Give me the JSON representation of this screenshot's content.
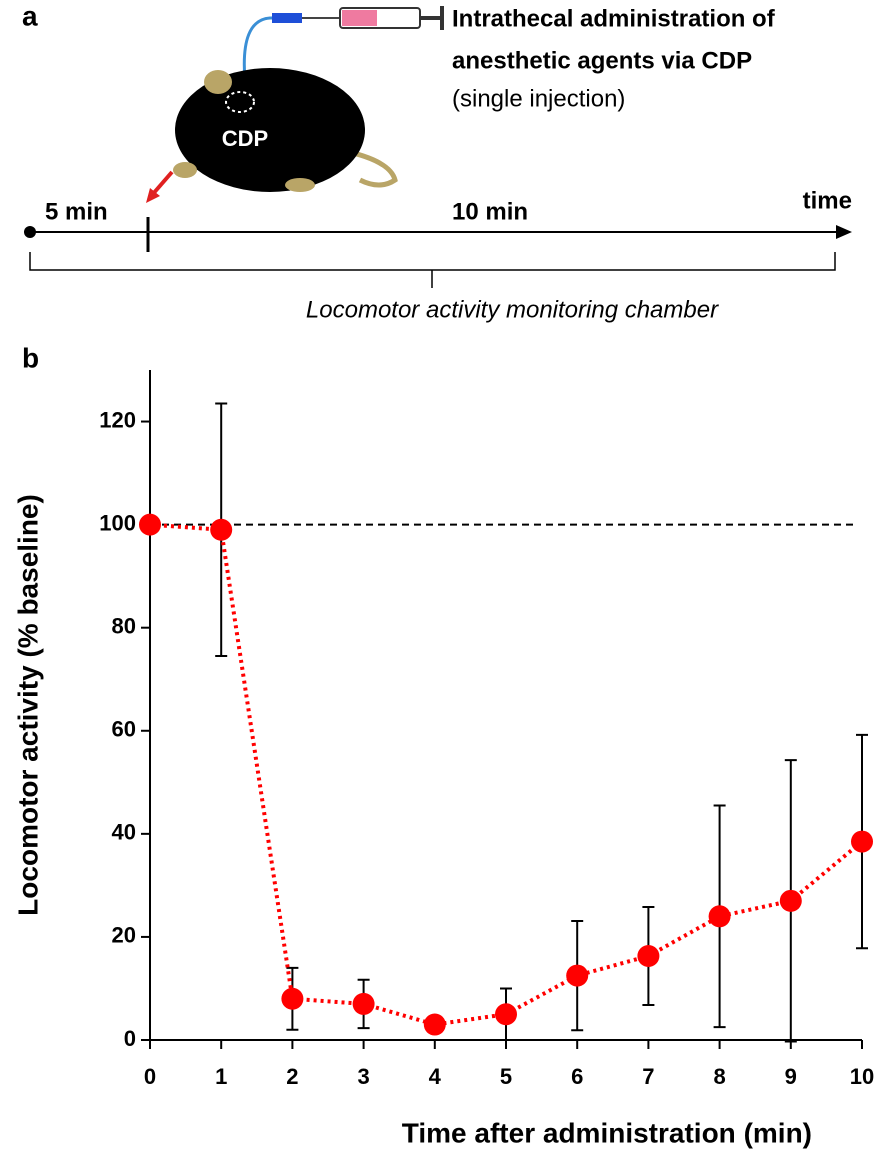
{
  "panel_a": {
    "label": "a",
    "injection_title_1": "Intrathecal administration of",
    "injection_title_2": "anesthetic agents via CDP",
    "injection_note": "(single injection)",
    "site": "CDP",
    "interval_1": "5 min",
    "interval_2": "10 min",
    "time_label": "time",
    "chamber": "Locomotor activity monitoring chamber"
  },
  "chart_data": {
    "type": "line",
    "panel_label": "b",
    "x_label": "Time after administration (min)",
    "y_label": "Locomotor activity  (% baseline)",
    "x": [
      0,
      1,
      2,
      3,
      4,
      5,
      6,
      7,
      8,
      9,
      10
    ],
    "values": [
      100,
      99,
      8,
      7,
      3,
      5,
      12.5,
      16.3,
      24,
      27,
      38.5
    ],
    "errors": [
      0,
      24.5,
      6,
      4.7,
      0.5,
      5,
      10.6,
      9.5,
      21.5,
      27.3,
      20.7
    ],
    "color": "#ff0000",
    "reference_line": 100,
    "xlim": [
      0,
      10
    ],
    "xticks": [
      0,
      1,
      2,
      3,
      4,
      5,
      6,
      7,
      8,
      9,
      10
    ],
    "ylim": [
      0,
      130
    ],
    "yticks": [
      0,
      20,
      40,
      60,
      80,
      100,
      120
    ]
  }
}
